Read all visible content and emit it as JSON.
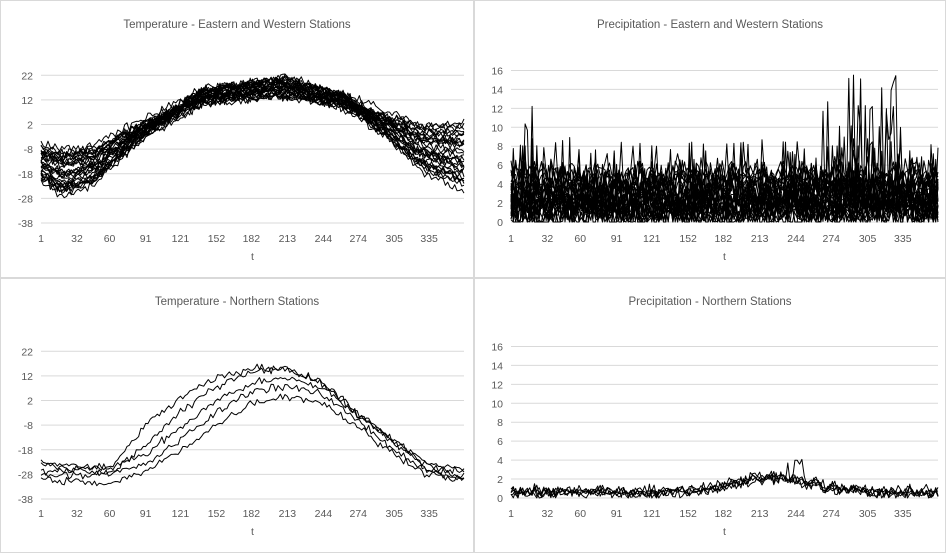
{
  "chart_data": [
    {
      "type": "line",
      "title": "Temperature  - Eastern and Western Stations",
      "xlabel": "t",
      "ylabel": "",
      "ylim": [
        -38,
        27
      ],
      "yticks": [
        22,
        12,
        2,
        -8,
        -18,
        -28,
        -38
      ],
      "xticks": [
        1,
        32,
        60,
        91,
        121,
        152,
        182,
        213,
        244,
        274,
        305,
        335
      ],
      "xlim": [
        1,
        365
      ],
      "grid": "horizontal",
      "legend": "none",
      "line_color": "#000000",
      "series_count": 30,
      "series_summary": "annual temperature cycles: minimum about -10 to -28 near t=1-40, maximum about 14 to 21 near t=200-215, ending near 2 to -25 at t=365"
    },
    {
      "type": "line",
      "title": "Precipitation - Eastern and Western Stations",
      "xlabel": "t",
      "ylabel": "",
      "ylim": [
        0,
        17
      ],
      "yticks": [
        16,
        14,
        12,
        10,
        8,
        6,
        4,
        2,
        0
      ],
      "xticks": [
        1,
        32,
        60,
        91,
        121,
        152,
        182,
        213,
        244,
        274,
        305,
        335
      ],
      "xlim": [
        1,
        365
      ],
      "grid": "horizontal",
      "legend": "none",
      "line_color": "#000000",
      "series_count": 30,
      "series_summary": "noisy daily precipitation mostly between 0 and 8, spikes to about 12.5 near t=20, peak about 16.3 near t=290"
    },
    {
      "type": "line",
      "title": "Temperature  - Northern Stations",
      "xlabel": "t",
      "ylabel": "",
      "ylim": [
        -38,
        27
      ],
      "yticks": [
        22,
        12,
        2,
        -8,
        -18,
        -28,
        -38
      ],
      "xticks": [
        1,
        32,
        60,
        91,
        121,
        152,
        182,
        213,
        244,
        274,
        305,
        335
      ],
      "xlim": [
        1,
        365
      ],
      "grid": "horizontal",
      "legend": "none",
      "line_color": "#000000",
      "series_count": 5,
      "series": [
        {
          "x": [
            1,
            60,
            91,
            121,
            152,
            182,
            213,
            244,
            274,
            305,
            335,
            365
          ],
          "values": [
            -23,
            -26,
            -8,
            3,
            11,
            15,
            15,
            9,
            -4,
            -15,
            -24,
            -26
          ]
        },
        {
          "x": [
            1,
            60,
            91,
            121,
            152,
            182,
            213,
            244,
            274,
            305,
            335,
            365
          ],
          "values": [
            -24,
            -28,
            -16,
            -3,
            8,
            14,
            15,
            9,
            -3,
            -14,
            -25,
            -27
          ]
        },
        {
          "x": [
            1,
            60,
            91,
            121,
            152,
            182,
            213,
            244,
            274,
            305,
            335,
            365
          ],
          "values": [
            -27,
            -25,
            -20,
            -9,
            2,
            9,
            11,
            7,
            -4,
            -15,
            -26,
            -29
          ]
        },
        {
          "x": [
            1,
            60,
            91,
            121,
            152,
            182,
            213,
            244,
            274,
            305,
            335,
            365
          ],
          "values": [
            -28,
            -28,
            -24,
            -14,
            -3,
            6,
            8,
            4,
            -6,
            -18,
            -27,
            -30
          ]
        },
        {
          "x": [
            1,
            60,
            91,
            121,
            152,
            182,
            213,
            244,
            274,
            305,
            335,
            365
          ],
          "values": [
            -30,
            -32,
            -27,
            -18,
            -8,
            1,
            4,
            1,
            -9,
            -20,
            -28,
            -30
          ]
        }
      ]
    },
    {
      "type": "line",
      "title": "Precipitation - Northern Stations",
      "xlabel": "t",
      "ylabel": "",
      "ylim": [
        0,
        17
      ],
      "yticks": [
        16,
        14,
        12,
        10,
        8,
        6,
        4,
        2,
        0
      ],
      "xticks": [
        1,
        32,
        60,
        91,
        121,
        152,
        182,
        213,
        244,
        274,
        305,
        335
      ],
      "xlim": [
        1,
        365
      ],
      "grid": "horizontal",
      "legend": "none",
      "line_color": "#000000",
      "series_count": 5,
      "series_summary": "low daily precipitation, mostly 0 to 1, rising to about 2-4 around t=200-250, max about 4.2 near t=244"
    }
  ],
  "colors": {
    "gridline": "#d9d9d9",
    "axis_text": "#595959",
    "line": "#000000",
    "panel_border": "#d9d9d9"
  }
}
